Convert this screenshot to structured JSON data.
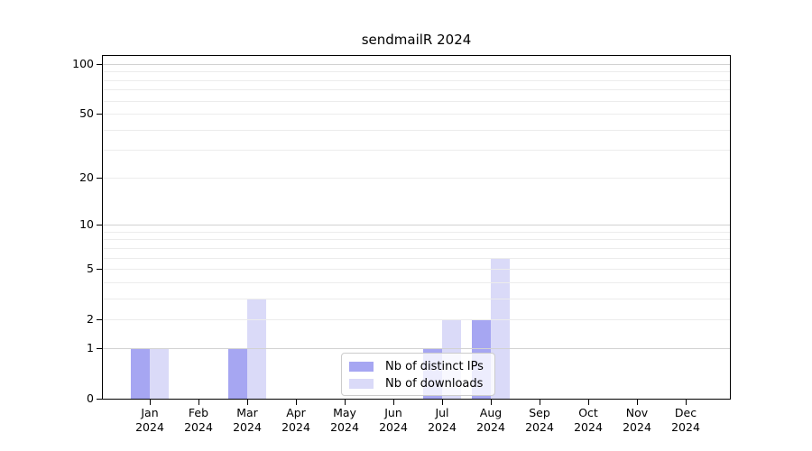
{
  "title": "sendmailR 2024",
  "colors": {
    "bar_distinct_ips": "#a6a6f2",
    "bar_downloads": "#dadaf8",
    "grid_major": "#d2d2d2",
    "grid_minor": "#ececec",
    "axis": "#000000",
    "legend_border": "#cccccc"
  },
  "legend": {
    "items": [
      {
        "label": "Nb of distinct IPs",
        "series_key": "distinct_ips"
      },
      {
        "label": "Nb of downloads",
        "series_key": "downloads"
      }
    ]
  },
  "chart_data": {
    "type": "bar",
    "title": "sendmailR 2024",
    "scale": "log10(1+y)",
    "categories": [
      "Jan 2024",
      "Feb 2024",
      "Mar 2024",
      "Apr 2024",
      "May 2024",
      "Jun 2024",
      "Jul 2024",
      "Aug 2024",
      "Sep 2024",
      "Oct 2024",
      "Nov 2024",
      "Dec 2024"
    ],
    "series": [
      {
        "name": "Nb of distinct IPs",
        "color": "#a6a6f2",
        "values": [
          1,
          0,
          1,
          0,
          0,
          0,
          1,
          2,
          0,
          0,
          0,
          0
        ]
      },
      {
        "name": "Nb of downloads",
        "color": "#dadaf8",
        "values": [
          1,
          0,
          3,
          0,
          0,
          0,
          2,
          6,
          0,
          0,
          0,
          0
        ]
      }
    ],
    "y_ticks": [
      0,
      1,
      2,
      5,
      10,
      20,
      50,
      100
    ],
    "y_gridlines_major": [
      1,
      10,
      100
    ],
    "y_gridlines_minor": [
      2,
      3,
      4,
      5,
      6,
      7,
      8,
      9,
      20,
      30,
      40,
      50,
      60,
      70,
      80,
      90
    ],
    "ylim": [
      0,
      113
    ],
    "grid": "on",
    "legend_position": "bottom-center-inside",
    "xlabel": "",
    "ylabel": ""
  }
}
